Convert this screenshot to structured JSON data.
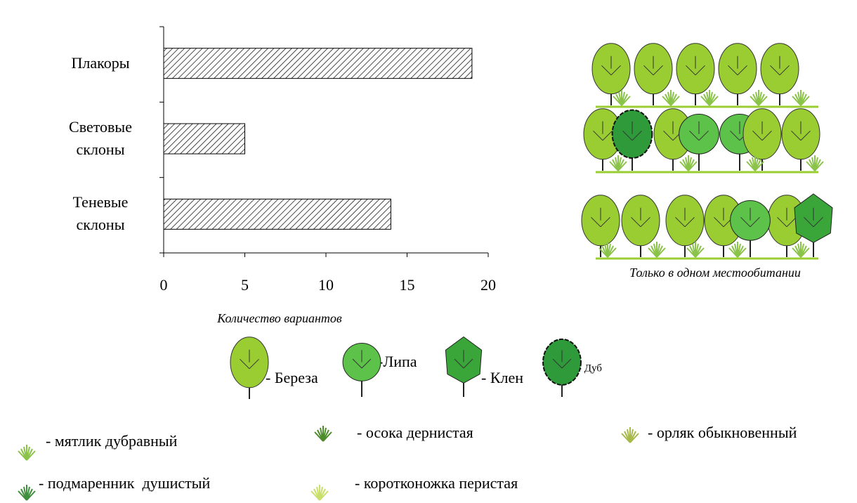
{
  "chart_data": {
    "type": "barh",
    "categories": [
      "Плакоры",
      "Световые склоны",
      "Теневые склоны"
    ],
    "values": [
      19,
      5,
      14
    ],
    "color": "#000000",
    "xlim": [
      0,
      20
    ],
    "xticks": [
      0,
      5,
      10,
      15,
      20
    ],
    "xlabel": "Количество вариантов"
  },
  "illustration": {
    "caption": "Только в одном местообитании"
  },
  "legend": {
    "trees": [
      "- Береза",
      "-Липа",
      "- Клен",
      "- Дуб"
    ],
    "herbs": [
      "- мятлик дубравный",
      "- осока дернистая",
      "- орляк обыкновенный",
      "- подмаренник  душистый",
      "- коротконожка перистая"
    ]
  }
}
